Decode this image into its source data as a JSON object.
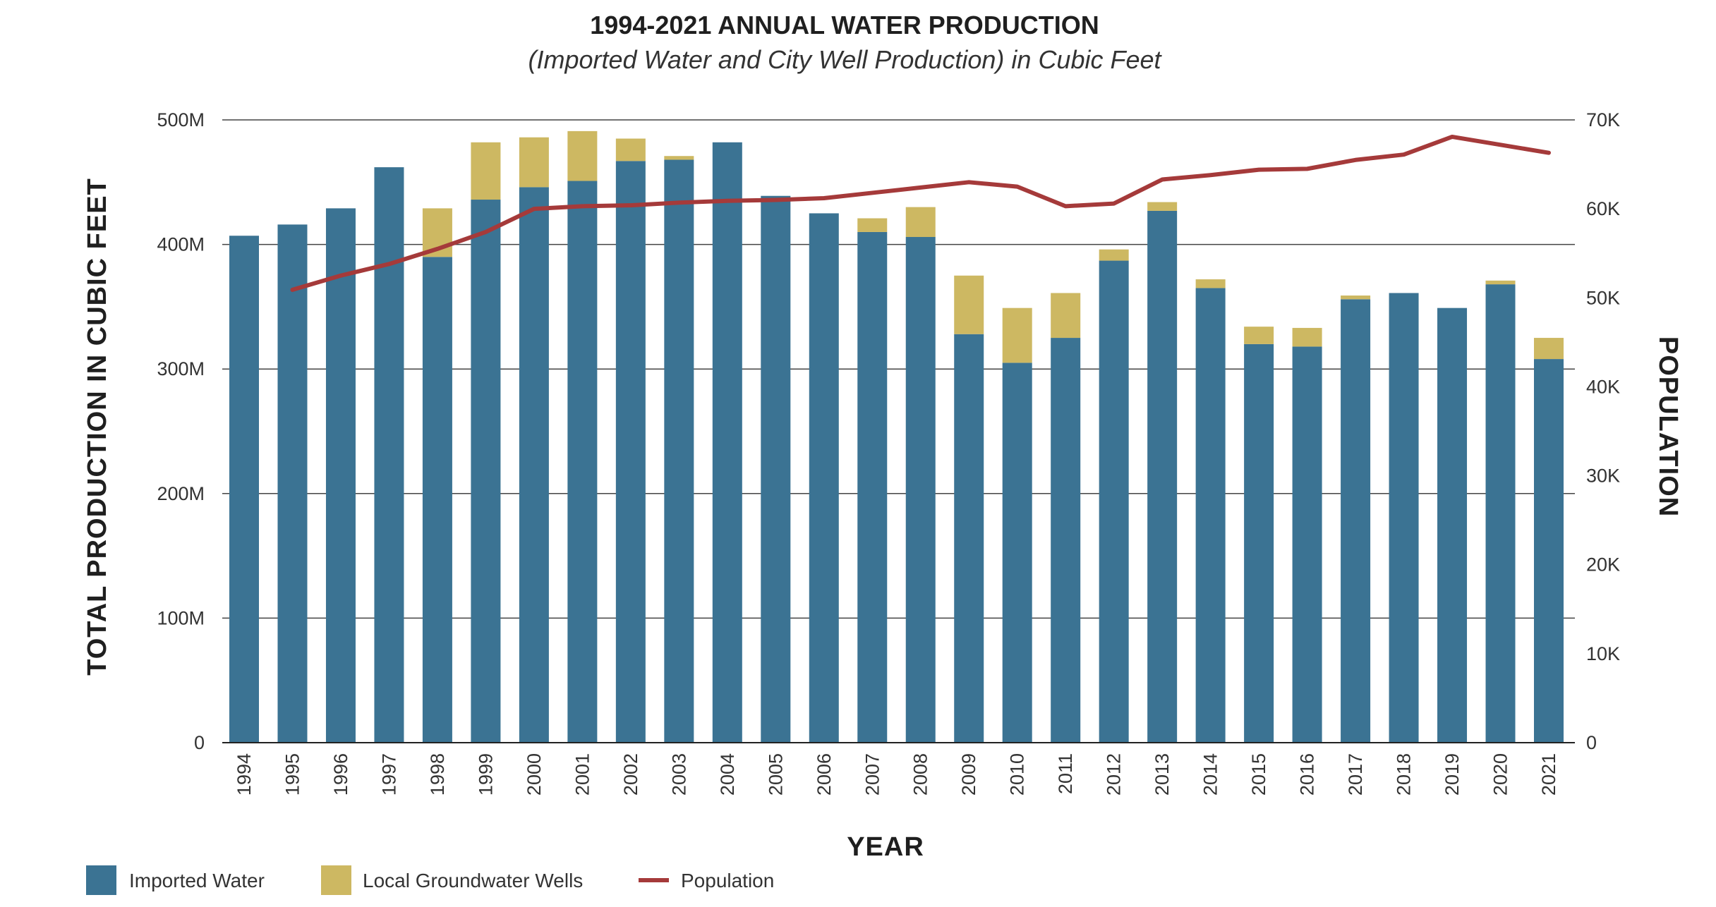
{
  "chart_data": {
    "type": "bar",
    "stacked": true,
    "title": "1994-2021 ANNUAL WATER PRODUCTION",
    "subtitle": "(Imported Water and City Well Production) in Cubic Feet",
    "xlabel": "YEAR",
    "ylabel": "TOTAL PRODUCTION IN CUBIC FEET",
    "y2label": "POPULATION",
    "ylim": [
      0,
      500000000
    ],
    "y2lim": [
      0,
      70000
    ],
    "yticks": [
      {
        "value": 0,
        "label": "0"
      },
      {
        "value": 100000000,
        "label": "100M"
      },
      {
        "value": 200000000,
        "label": "200M"
      },
      {
        "value": 300000000,
        "label": "300M"
      },
      {
        "value": 400000000,
        "label": "400M"
      },
      {
        "value": 500000000,
        "label": "500M"
      }
    ],
    "y2ticks": [
      {
        "value": 0,
        "label": "0"
      },
      {
        "value": 10000,
        "label": "10K"
      },
      {
        "value": 20000,
        "label": "20K"
      },
      {
        "value": 30000,
        "label": "30K"
      },
      {
        "value": 40000,
        "label": "40K"
      },
      {
        "value": 50000,
        "label": "50K"
      },
      {
        "value": 60000,
        "label": "60K"
      },
      {
        "value": 70000,
        "label": "70K"
      }
    ],
    "categories": [
      "1994",
      "1995",
      "1996",
      "1997",
      "1998",
      "1999",
      "2000",
      "2001",
      "2002",
      "2003",
      "2004",
      "2005",
      "2006",
      "2007",
      "2008",
      "2009",
      "2010",
      "2011",
      "2012",
      "2013",
      "2014",
      "2015",
      "2016",
      "2017",
      "2018",
      "2019",
      "2020",
      "2021"
    ],
    "series": [
      {
        "name": "Imported Water",
        "color": "#3b7393",
        "values": [
          407,
          416,
          429,
          462,
          390,
          436,
          446,
          451,
          467,
          468,
          482,
          439,
          425,
          410,
          406,
          328,
          305,
          325,
          387,
          427,
          365,
          320,
          318,
          356,
          361,
          349,
          368,
          308
        ]
      },
      {
        "name": "Local Groundwater Wells",
        "color": "#cdb862",
        "values": [
          0,
          0,
          0,
          0,
          39,
          46,
          40,
          40,
          18,
          3,
          0,
          0,
          0,
          11,
          24,
          47,
          44,
          36,
          9,
          7,
          7,
          14,
          15,
          3,
          0,
          0,
          3,
          17
        ]
      }
    ],
    "value_unit_multiplier": 1000000,
    "line_series": [
      {
        "name": "Population",
        "color": "#a53a3a",
        "axis": "right",
        "x": [
          "1995",
          "1996",
          "1997",
          "1998",
          "1999",
          "2000",
          "2001",
          "2002",
          "2003",
          "2004",
          "2005",
          "2006",
          "2007",
          "2008",
          "2009",
          "2010",
          "2011",
          "2012",
          "2013",
          "2014",
          "2015",
          "2016",
          "2017",
          "2018",
          "2019",
          "2020",
          "2021"
        ],
        "values": [
          50900,
          52500,
          53800,
          55500,
          57400,
          60000,
          60300,
          60400,
          60700,
          60900,
          61000,
          61200,
          61800,
          62400,
          63000,
          62500,
          60300,
          60600,
          63300,
          63800,
          64400,
          64500,
          65500,
          66100,
          68100,
          67200,
          66300
        ]
      }
    ],
    "legend": {
      "position": "bottom-left",
      "items": [
        {
          "label": "Imported Water",
          "kind": "swatch",
          "color": "#3b7393"
        },
        {
          "label": "Local Groundwater Wells",
          "kind": "swatch",
          "color": "#cdb862"
        },
        {
          "label": "Population",
          "kind": "line",
          "color": "#a53a3a"
        }
      ]
    }
  }
}
